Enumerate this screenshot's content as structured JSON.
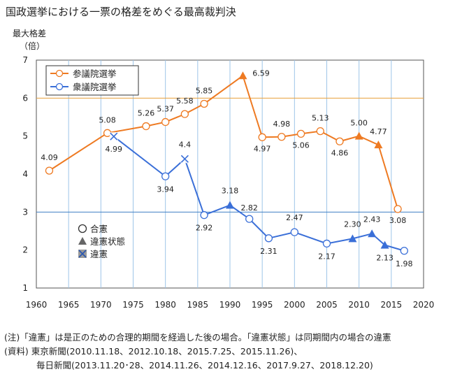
{
  "title": "国政選挙における一票の格差をめぐる最高裁判決",
  "chart_data": {
    "type": "line",
    "ylabel": "最大格差",
    "yunit": "（倍）",
    "xlim": [
      1960,
      2020
    ],
    "ylim": [
      1,
      7
    ],
    "xticks": [
      1960,
      1965,
      1970,
      1975,
      1980,
      1985,
      1990,
      1995,
      2000,
      2005,
      2010,
      2015,
      2020
    ],
    "yticks": [
      1,
      2,
      3,
      4,
      5,
      6,
      7
    ],
    "ref_lines": [
      6,
      3
    ],
    "grid": "vertical",
    "legend_position": "top-left",
    "series": [
      {
        "name": "参議院選挙",
        "color": "#ee7a22",
        "points": [
          {
            "x": 1962,
            "y": 4.09,
            "label": "4.09",
            "marker": "circle"
          },
          {
            "x": 1971,
            "y": 5.08,
            "label": "5.08",
            "marker": "circle"
          },
          {
            "x": 1977,
            "y": 5.26,
            "label": "5.26",
            "marker": "circle"
          },
          {
            "x": 1980,
            "y": 5.37,
            "label": "5.37",
            "marker": "circle"
          },
          {
            "x": 1983,
            "y": 5.58,
            "label": "5.58",
            "marker": "circle"
          },
          {
            "x": 1986,
            "y": 5.85,
            "label": "5.85",
            "marker": "circle"
          },
          {
            "x": 1992,
            "y": 6.59,
            "label": "6.59",
            "marker": "triangle"
          },
          {
            "x": 1995,
            "y": 4.97,
            "label": "4.97",
            "marker": "circle"
          },
          {
            "x": 1998,
            "y": 4.98,
            "label": "4.98",
            "marker": "circle"
          },
          {
            "x": 2001,
            "y": 5.06,
            "label": "5.06",
            "marker": "circle"
          },
          {
            "x": 2004,
            "y": 5.13,
            "label": "5.13",
            "marker": "circle"
          },
          {
            "x": 2007,
            "y": 4.86,
            "label": "4.86",
            "marker": "circle"
          },
          {
            "x": 2010,
            "y": 5.0,
            "label": "5.00",
            "marker": "triangle"
          },
          {
            "x": 2013,
            "y": 4.77,
            "label": "4.77",
            "marker": "triangle"
          },
          {
            "x": 2016,
            "y": 3.08,
            "label": "3.08",
            "marker": "circle"
          }
        ]
      },
      {
        "name": "衆議院選挙",
        "color": "#3a6fd8",
        "points": [
          {
            "x": 1972,
            "y": 4.99,
            "label": "4.99",
            "marker": "cross"
          },
          {
            "x": 1980,
            "y": 3.94,
            "label": "3.94",
            "marker": "circle"
          },
          {
            "x": 1983,
            "y": 4.4,
            "label": "4.4",
            "marker": "cross"
          },
          {
            "x": 1986,
            "y": 2.92,
            "label": "2.92",
            "marker": "circle"
          },
          {
            "x": 1990,
            "y": 3.18,
            "label": "3.18",
            "marker": "triangle"
          },
          {
            "x": 1993,
            "y": 2.82,
            "label": "2.82",
            "marker": "circle"
          },
          {
            "x": 1996,
            "y": 2.31,
            "label": "2.31",
            "marker": "circle"
          },
          {
            "x": 2000,
            "y": 2.47,
            "label": "2.47",
            "marker": "circle"
          },
          {
            "x": 2005,
            "y": 2.17,
            "label": "2.17",
            "marker": "circle"
          },
          {
            "x": 2009,
            "y": 2.3,
            "label": "2.30",
            "marker": "triangle"
          },
          {
            "x": 2012,
            "y": 2.43,
            "label": "2.43",
            "marker": "triangle"
          },
          {
            "x": 2014,
            "y": 2.13,
            "label": "2.13",
            "marker": "triangle"
          },
          {
            "x": 2017,
            "y": 1.98,
            "label": "1.98",
            "marker": "circle"
          }
        ]
      }
    ],
    "marker_legend": [
      {
        "marker": "circle",
        "label": "合憲"
      },
      {
        "marker": "triangle",
        "label": "違憲状態"
      },
      {
        "marker": "cross",
        "label": "違憲"
      }
    ]
  },
  "notes": {
    "note": "(注)「違憲」は是正のための合理的期間を経過した後の場合。「違憲状態」は同期間内の場合の違憲",
    "source_line1": "(資料) 東京新聞(2010.11.18、2012.10.18、2015.7.25、2015.11.26)、",
    "source_line2": "毎日新聞(2013.11.20･28、2014.11.26、2014.12.16、2017.9.27、2018.12.20)"
  }
}
